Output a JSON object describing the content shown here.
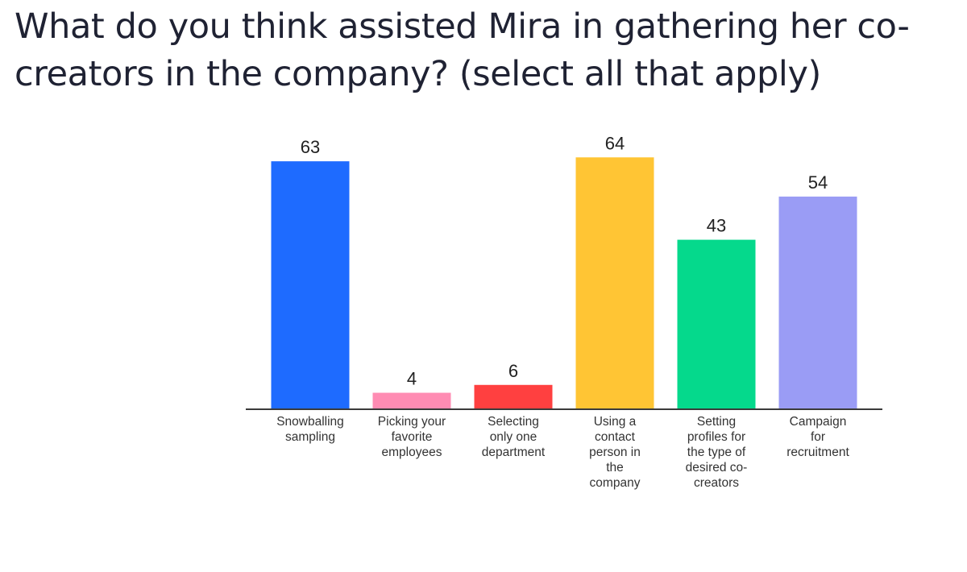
{
  "question": {
    "title": "What do you think assisted Mira in gathering her co-creators in the company? (select all that apply)"
  },
  "chart_data": {
    "type": "bar",
    "title": "What do you think assisted Mira in gathering her co-creators in the company? (select all that apply)",
    "categories": [
      [
        "Snowballing",
        "sampling"
      ],
      [
        "Picking your",
        "favorite",
        "employees"
      ],
      [
        "Selecting",
        "only one",
        "department"
      ],
      [
        "Using a",
        "contact",
        "person in",
        "the",
        "company"
      ],
      [
        "Setting",
        "profiles for",
        "the type of",
        "desired co-",
        "creators"
      ],
      [
        "Campaign",
        "for",
        "recruitment"
      ]
    ],
    "values": [
      63,
      4,
      6,
      64,
      43,
      54
    ],
    "colors": [
      "#1e6bff",
      "#ff8cb3",
      "#ff4040",
      "#ffc534",
      "#05d98c",
      "#9a9cf5"
    ],
    "xlabel": "",
    "ylabel": "",
    "ylim": [
      0,
      64
    ],
    "grid": false,
    "legend": "none"
  }
}
